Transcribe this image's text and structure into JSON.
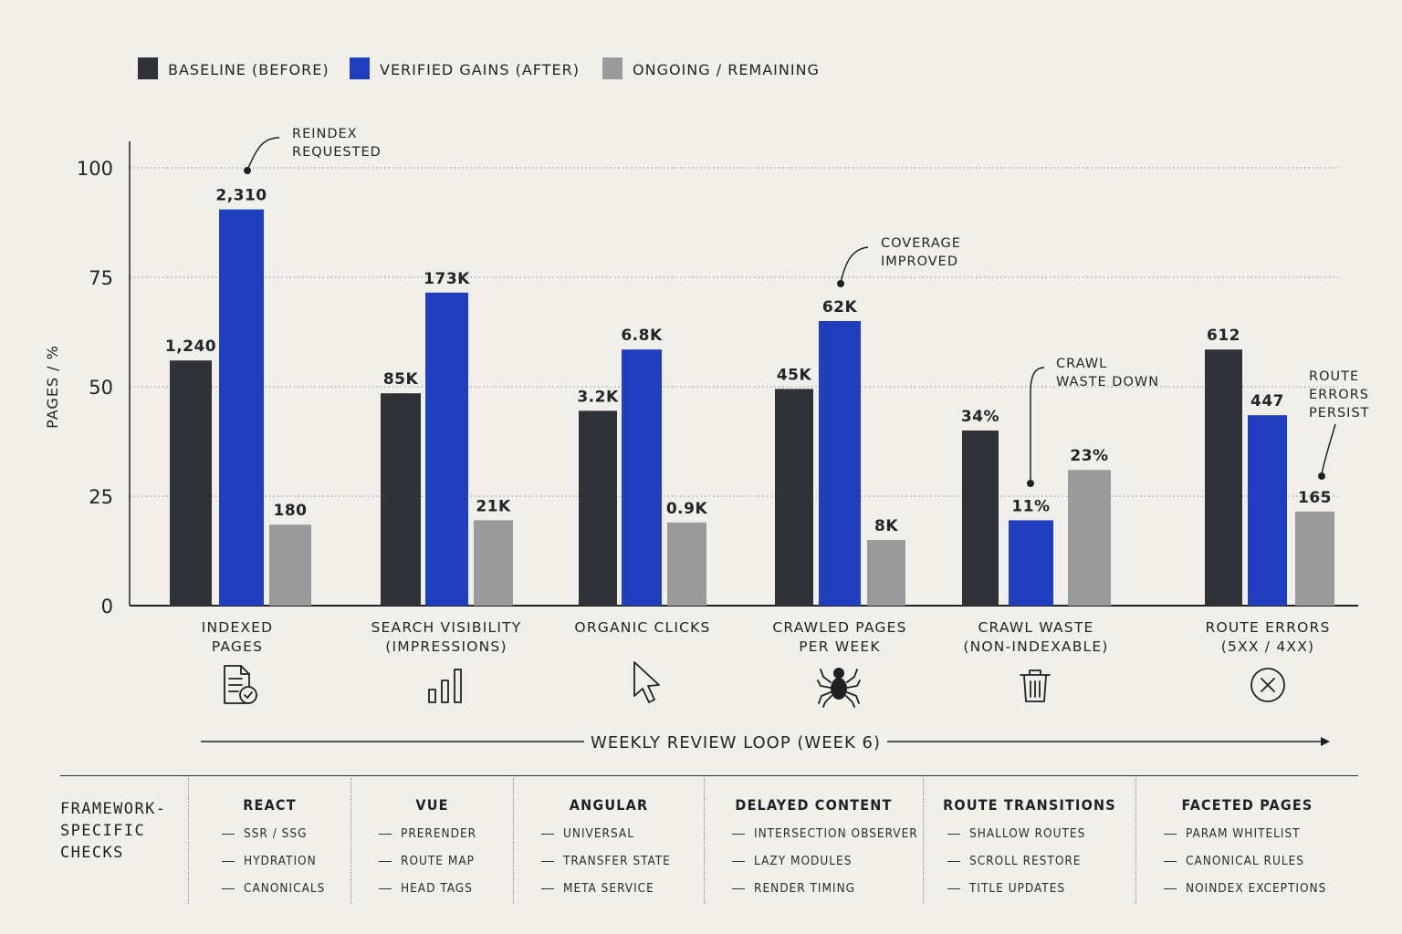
{
  "legend": [
    {
      "label": "BASELINE (BEFORE)",
      "color": "#2f3236"
    },
    {
      "label": "VERIFIED GAINS (AFTER)",
      "color": "#1f3fbf"
    },
    {
      "label": "ONGOING / REMAINING",
      "color": "#9a9a9a"
    }
  ],
  "chart_data": {
    "type": "bar",
    "ylabel": "PAGES / %",
    "ylim": [
      0,
      100
    ],
    "yticks": [
      0,
      25,
      50,
      75,
      100
    ],
    "grid": true,
    "legend_position": "top-left",
    "categories": [
      [
        "INDEXED",
        "PAGES"
      ],
      [
        "SEARCH VISIBILITY",
        "(IMPRESSIONS)"
      ],
      [
        "ORGANIC CLICKS"
      ],
      [
        "CRAWLED PAGES",
        "PER WEEK"
      ],
      [
        "CRAWL WASTE",
        "(NON-INDEXABLE)"
      ],
      [
        "ROUTE ERRORS",
        "(5XX / 4XX)"
      ]
    ],
    "category_icons": [
      "document-check-icon",
      "signal-bars-icon",
      "cursor-icon",
      "spider-icon",
      "trash-icon",
      "error-circle-icon"
    ],
    "series": [
      {
        "name": "BASELINE (BEFORE)",
        "color": "#2f3236",
        "values": [
          56,
          48.5,
          44.5,
          49.5,
          40,
          58.5
        ],
        "labels": [
          "1,240",
          "85K",
          "3.2K",
          "45K",
          "34%",
          "612"
        ]
      },
      {
        "name": "VERIFIED GAINS (AFTER)",
        "color": "#1f3fbf",
        "values": [
          90.5,
          71.5,
          58.5,
          65,
          19.5,
          43.5
        ],
        "labels": [
          "2,310",
          "173K",
          "6.8K",
          "62K",
          "11%",
          "447"
        ]
      },
      {
        "name": "ONGOING / REMAINING",
        "color": "#9a9a9a",
        "values": [
          18.5,
          19.5,
          19,
          15,
          31,
          21.5
        ],
        "labels": [
          "180",
          "21K",
          "0.9K",
          "8K",
          "23%",
          "165"
        ]
      }
    ],
    "annotations": [
      {
        "lines": [
          "REINDEX",
          "REQUESTED"
        ],
        "category": 0,
        "series": 1
      },
      {
        "lines": [
          "COVERAGE",
          "IMPROVED"
        ],
        "category": 3,
        "series": 1
      },
      {
        "lines": [
          "CRAWL",
          "WASTE DOWN"
        ],
        "category": 4,
        "series": 1
      },
      {
        "lines": [
          "ROUTE",
          "ERRORS",
          "PERSIST"
        ],
        "category": 5,
        "series": 2
      }
    ],
    "timeline_label": "WEEKLY REVIEW LOOP (WEEK 6)"
  },
  "framework": {
    "heading": [
      "FRAMEWORK-",
      "SPECIFIC",
      "CHECKS"
    ],
    "columns": [
      {
        "title": "REACT",
        "items": [
          "SSR / SSG",
          "HYDRATION",
          "CANONICALS"
        ]
      },
      {
        "title": "VUE",
        "items": [
          "PRERENDER",
          "ROUTE MAP",
          "HEAD TAGS"
        ]
      },
      {
        "title": "ANGULAR",
        "items": [
          "UNIVERSAL",
          "TRANSFER STATE",
          "META SERVICE"
        ]
      },
      {
        "title": "DELAYED CONTENT",
        "items": [
          "INTERSECTION OBSERVER",
          "LAZY MODULES",
          "RENDER TIMING"
        ]
      },
      {
        "title": "ROUTE TRANSITIONS",
        "items": [
          "SHALLOW ROUTES",
          "SCROLL RESTORE",
          "TITLE UPDATES"
        ]
      },
      {
        "title": "FACETED PAGES",
        "items": [
          "PARAM WHITELIST",
          "CANONICAL RULES",
          "NOINDEX EXCEPTIONS"
        ]
      }
    ]
  }
}
